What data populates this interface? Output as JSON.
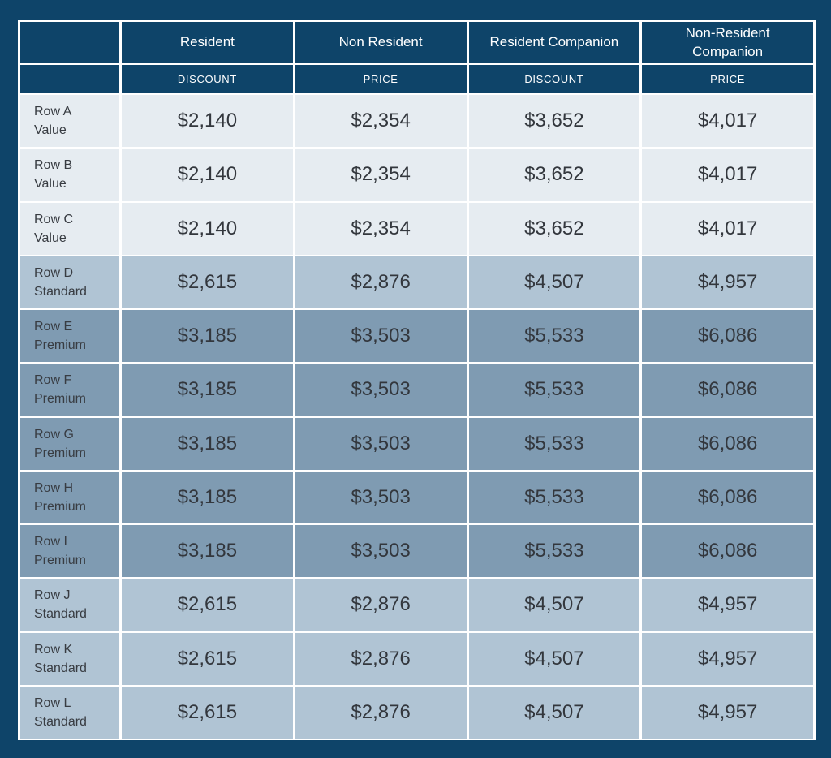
{
  "colors": {
    "background": "#0E4469",
    "header_bg": "#0E4469",
    "header_text": "#FFFFFF",
    "grid": "#FFFFFF",
    "cell_text": "#33373D",
    "tier_value": "#E6ECF1",
    "tier_standard": "#B0C4D4",
    "tier_premium": "#7F9BB2"
  },
  "chart_data": {
    "type": "table",
    "title": "",
    "columns": [
      "Resident",
      "Non Resident",
      "Resident Companion",
      "Non-Resident Companion"
    ],
    "subheaders": [
      "DISCOUNT",
      "PRICE",
      "DISCOUNT",
      "PRICE"
    ],
    "rows": [
      {
        "row": "Row A",
        "tier": "Value",
        "values": [
          "$2,140",
          "$2,354",
          "$3,652",
          "$4,017"
        ]
      },
      {
        "row": "Row B",
        "tier": "Value",
        "values": [
          "$2,140",
          "$2,354",
          "$3,652",
          "$4,017"
        ]
      },
      {
        "row": "Row C",
        "tier": "Value",
        "values": [
          "$2,140",
          "$2,354",
          "$3,652",
          "$4,017"
        ]
      },
      {
        "row": "Row D",
        "tier": "Standard",
        "values": [
          "$2,615",
          "$2,876",
          "$4,507",
          "$4,957"
        ]
      },
      {
        "row": "Row E",
        "tier": "Premium",
        "values": [
          "$3,185",
          "$3,503",
          "$5,533",
          "$6,086"
        ]
      },
      {
        "row": "Row F",
        "tier": "Premium",
        "values": [
          "$3,185",
          "$3,503",
          "$5,533",
          "$6,086"
        ]
      },
      {
        "row": "Row G",
        "tier": "Premium",
        "values": [
          "$3,185",
          "$3,503",
          "$5,533",
          "$6,086"
        ]
      },
      {
        "row": "Row H",
        "tier": "Premium",
        "values": [
          "$3,185",
          "$3,503",
          "$5,533",
          "$6,086"
        ]
      },
      {
        "row": "Row I",
        "tier": "Premium",
        "values": [
          "$3,185",
          "$3,503",
          "$5,533",
          "$6,086"
        ]
      },
      {
        "row": "Row J",
        "tier": "Standard",
        "values": [
          "$2,615",
          "$2,876",
          "$4,507",
          "$4,957"
        ]
      },
      {
        "row": "Row K",
        "tier": "Standard",
        "values": [
          "$2,615",
          "$2,876",
          "$4,507",
          "$4,957"
        ]
      },
      {
        "row": "Row L",
        "tier": "Standard",
        "values": [
          "$2,615",
          "$2,876",
          "$4,507",
          "$4,957"
        ]
      }
    ]
  }
}
